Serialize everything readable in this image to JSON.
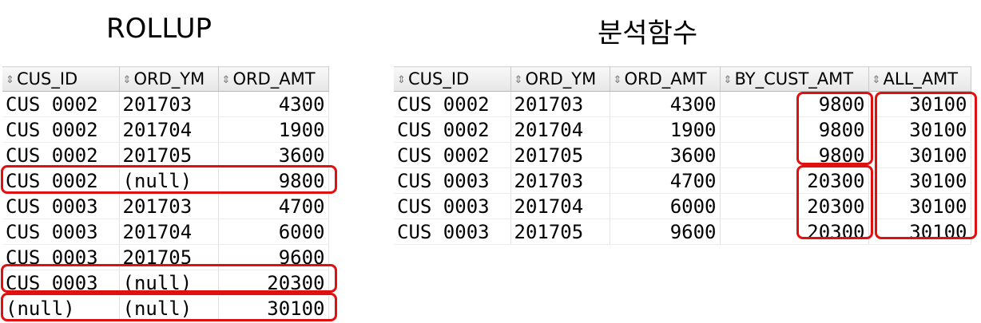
{
  "left_panel": {
    "title": "ROLLUP",
    "columns": [
      "CUS_ID",
      "ORD_YM",
      "ORD_AMT"
    ],
    "rows": [
      [
        "CUS 0002",
        "201703",
        "4300"
      ],
      [
        "CUS 0002",
        "201704",
        "1900"
      ],
      [
        "CUS 0002",
        "201705",
        "3600"
      ],
      [
        "CUS 0002",
        "(null)",
        "9800"
      ],
      [
        "CUS 0003",
        "201703",
        "4700"
      ],
      [
        "CUS 0003",
        "201704",
        "6000"
      ],
      [
        "CUS 0003",
        "201705",
        "9600"
      ],
      [
        "CUS 0003",
        "(null)",
        "20300"
      ],
      [
        "(null)",
        "(null)",
        "30100"
      ]
    ]
  },
  "right_panel": {
    "title": "분석함수",
    "columns": [
      "CUS_ID",
      "ORD_YM",
      "ORD_AMT",
      "BY_CUST_AMT",
      "ALL_AMT"
    ],
    "rows": [
      [
        "CUS 0002",
        "201703",
        "4300",
        "9800",
        "30100"
      ],
      [
        "CUS 0002",
        "201704",
        "1900",
        "9800",
        "30100"
      ],
      [
        "CUS 0002",
        "201705",
        "3600",
        "9800",
        "30100"
      ],
      [
        "CUS 0003",
        "201703",
        "4700",
        "20300",
        "30100"
      ],
      [
        "CUS 0003",
        "201704",
        "6000",
        "20300",
        "30100"
      ],
      [
        "CUS 0003",
        "201705",
        "9600",
        "20300",
        "30100"
      ]
    ]
  },
  "sort_icon": "sort-arrows-icon",
  "highlight_color": "#e01010"
}
